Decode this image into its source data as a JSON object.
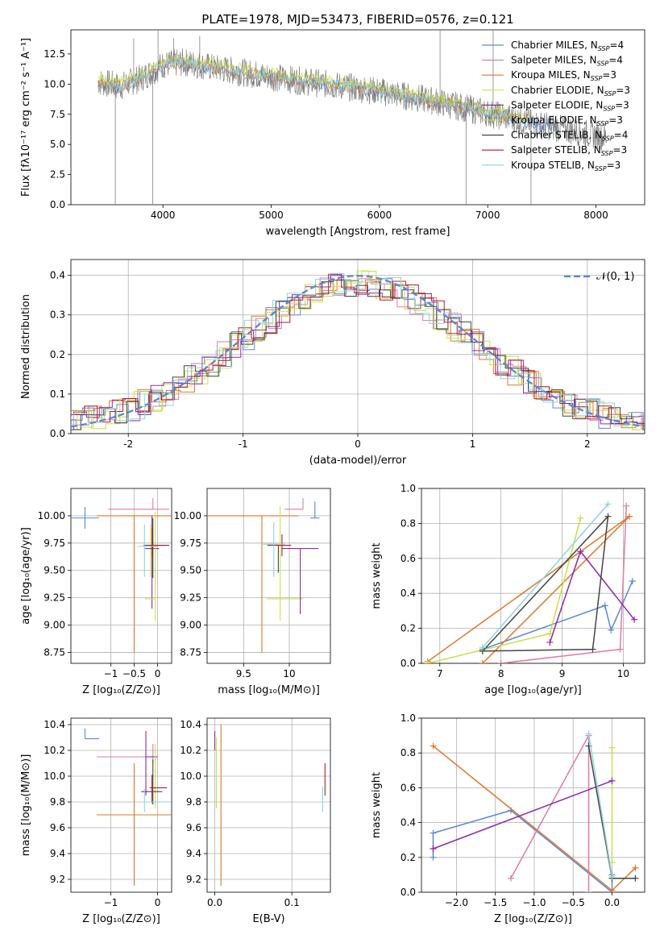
{
  "figure_title": "PLATE=1978, MJD=53473, FIBERID=0576, z=0.121",
  "colors": {
    "chabrier_miles": "#5b86d8",
    "salpeter_miles": "#e07aa8",
    "kroupa_miles": "#e0772a",
    "chabrier_elodie": "#c8e04a",
    "salpeter_elodie": "#8e2aa8",
    "kroupa_elodie": "#c8e04a",
    "chabrier_stelib": "#444444",
    "salpeter_stelib": "#b01c2a",
    "kroupa_stelib": "#8fd3e0",
    "data": "#808080",
    "gaussian": "#5b86d8"
  },
  "chart_data": [
    {
      "id": "spectrum",
      "type": "line",
      "xlabel": "wavelength [Angstrom, rest frame]",
      "ylabel": "Flux [fλ10⁻¹⁷ erg cm⁻² s⁻¹ A⁻¹]",
      "xlim": [
        3150,
        8450
      ],
      "ylim": [
        0,
        14.5
      ],
      "xticks": [
        4000,
        5000,
        6000,
        7000,
        8000
      ],
      "yticks": [
        0.0,
        2.5,
        5.0,
        7.5,
        10.0,
        12.5
      ],
      "grid": false,
      "legend_position": "top-right",
      "legend": [
        {
          "label": "Chabrier MILES, N",
          "sub": "SSP",
          "tail": "=4",
          "color_key": "chabrier_miles"
        },
        {
          "label": "Salpeter MILES, N",
          "sub": "SSP",
          "tail": "=4",
          "color_key": "salpeter_miles"
        },
        {
          "label": "Kroupa MILES, N",
          "sub": "SSP",
          "tail": "=3",
          "color_key": "kroupa_miles"
        },
        {
          "label": "Chabrier ELODIE, N",
          "sub": "SSP",
          "tail": "=3",
          "color_key": "chabrier_elodie"
        },
        {
          "label": "Salpeter ELODIE, N",
          "sub": "SSP",
          "tail": "=3",
          "color_key": "salpeter_elodie"
        },
        {
          "label": "Kroupa ELODIE, N",
          "sub": "SSP",
          "tail": "=3",
          "color_key": "kroupa_elodie"
        },
        {
          "label": "Chabrier STELIB, N",
          "sub": "SSP",
          "tail": "=4",
          "color_key": "chabrier_stelib"
        },
        {
          "label": "Salpeter STELIB, N",
          "sub": "SSP",
          "tail": "=3",
          "color_key": "salpeter_stelib"
        },
        {
          "label": "Kroupa STELIB, N",
          "sub": "SSP",
          "tail": "=3",
          "color_key": "kroupa_stelib"
        }
      ],
      "continuum": {
        "x": [
          3400,
          3600,
          3800,
          4000,
          4200,
          4500,
          5000,
          5500,
          6000,
          6500,
          7000,
          7500,
          8100
        ],
        "y": [
          10.2,
          9.8,
          10.5,
          11.6,
          11.8,
          11.3,
          10.6,
          10.0,
          9.4,
          8.6,
          7.6,
          6.6,
          5.6
        ]
      },
      "spikes": [
        {
          "x": 3560,
          "y": 0.0
        },
        {
          "x": 3730,
          "y": 13.8
        },
        {
          "x": 3905,
          "y": 0.0
        },
        {
          "x": 3955,
          "y": 14.5
        },
        {
          "x": 4100,
          "y": 13.8
        },
        {
          "x": 4340,
          "y": 14.0
        },
        {
          "x": 6560,
          "y": 14.5
        },
        {
          "x": 6800,
          "y": 0.0
        },
        {
          "x": 7050,
          "y": 14.5
        },
        {
          "x": 7400,
          "y": 0.0
        }
      ]
    },
    {
      "id": "residuals",
      "type": "line",
      "xlabel": "(data-model)/error",
      "ylabel": "Normed distribution",
      "xlim": [
        -2.5,
        2.5
      ],
      "ylim": [
        0,
        0.44
      ],
      "xticks": [
        -2,
        -1,
        0,
        1,
        2
      ],
      "yticks": [
        0.0,
        0.1,
        0.2,
        0.3,
        0.4
      ],
      "grid": true,
      "legend_position": "top-right",
      "legend": [
        {
          "label": "𝒩(0, 1)",
          "color_key": "gaussian"
        }
      ],
      "gaussian": {
        "mean": 0,
        "sigma": 1
      },
      "histogram_series_count": 9
    },
    {
      "id": "age_vs_Z",
      "type": "scatter",
      "xlabel": "Z [log₁₀(Z/Z⊙)]",
      "ylabel": "age  [log₁₀(age/yr)]",
      "xlim": [
        -1.85,
        0.3
      ],
      "ylim": [
        8.65,
        10.25
      ],
      "xticks": [
        -1,
        -0.5,
        0
      ],
      "xticklabels": [
        "−1",
        "−0.5",
        "0"
      ],
      "yticks": [
        8.75,
        9.0,
        9.25,
        9.5,
        9.75,
        10.0
      ],
      "ytick_labels": [
        "8.75",
        "9.00",
        "9.25",
        "9.50",
        "9.75",
        "10.00"
      ],
      "grid": true,
      "points": [
        {
          "x": -1.55,
          "y": 9.98,
          "xerr": [
            0.3,
            0.3
          ],
          "yerr": [
            0.1,
            0.1
          ],
          "color_key": "chabrier_miles"
        },
        {
          "x": -0.1,
          "y": 10.06,
          "xerr": [
            0.95,
            0.35
          ],
          "yerr": [
            0.0,
            0.1
          ],
          "color_key": "salpeter_miles"
        },
        {
          "x": -0.5,
          "y": 10.0,
          "xerr": [
            0.8,
            0.8
          ],
          "yerr": [
            1.25,
            0.0
          ],
          "color_key": "kroupa_miles"
        },
        {
          "x": -0.15,
          "y": 9.72,
          "xerr": [
            0.0,
            0.15
          ],
          "yerr": [
            0.28,
            0.2
          ],
          "color_key": "chabrier_elodie"
        },
        {
          "x": -0.12,
          "y": 9.7,
          "xerr": [
            0.15,
            0.15
          ],
          "yerr": [
            0.55,
            0.3
          ],
          "color_key": "salpeter_elodie"
        },
        {
          "x": -0.05,
          "y": 9.24,
          "xerr": [
            0.22,
            0.0
          ],
          "yerr": [
            0.2,
            0.8
          ],
          "color_key": "kroupa_elodie"
        },
        {
          "x": -0.1,
          "y": 9.73,
          "xerr": [
            0.2,
            0.35
          ],
          "yerr": [
            0.3,
            0.25
          ],
          "color_key": "chabrier_stelib"
        },
        {
          "x": -0.12,
          "y": 9.73,
          "xerr": [
            0.05,
            0.3
          ],
          "yerr": [
            0.1,
            0.15
          ],
          "color_key": "salpeter_stelib"
        },
        {
          "x": -0.28,
          "y": 9.72,
          "xerr": [
            0.15,
            0.25
          ],
          "yerr": [
            0.28,
            0.2
          ],
          "color_key": "kroupa_stelib"
        }
      ]
    },
    {
      "id": "age_vs_mass",
      "type": "scatter",
      "xlabel": "mass [log₁₀(M/M⊙)]",
      "ylabel": "",
      "xlim": [
        9.1,
        10.45
      ],
      "ylim": [
        8.65,
        10.25
      ],
      "xticks": [
        9.5,
        10.0
      ],
      "yticks": [
        8.75,
        9.0,
        9.25,
        9.5,
        9.75,
        10.0
      ],
      "ytick_labels": [
        "8.75",
        "9.00",
        "9.25",
        "9.50",
        "9.75",
        "10.00"
      ],
      "grid": true,
      "points": [
        {
          "x": 10.28,
          "y": 9.98,
          "xerr": [
            0.05,
            0.05
          ],
          "yerr": [
            0.0,
            0.15
          ],
          "color_key": "chabrier_miles"
        },
        {
          "x": 10.15,
          "y": 10.06,
          "xerr": [
            0.2,
            0.0
          ],
          "yerr": [
            0.0,
            0.1
          ],
          "color_key": "salpeter_miles"
        },
        {
          "x": 9.7,
          "y": 10.0,
          "xerr": [
            0.6,
            0.4
          ],
          "yerr": [
            1.25,
            0.0
          ],
          "color_key": "kroupa_miles"
        },
        {
          "x": 9.9,
          "y": 9.24,
          "xerr": [
            0.15,
            0.25
          ],
          "yerr": [
            0.2,
            0.85
          ],
          "color_key": "kroupa_elodie"
        },
        {
          "x": 10.12,
          "y": 9.7,
          "xerr": [
            0.2,
            0.2
          ],
          "yerr": [
            0.6,
            0.0
          ],
          "color_key": "salpeter_elodie"
        },
        {
          "x": 9.88,
          "y": 9.73,
          "xerr": [
            0.12,
            0.0
          ],
          "yerr": [
            0.25,
            0.0
          ],
          "color_key": "chabrier_stelib"
        },
        {
          "x": 9.92,
          "y": 9.73,
          "xerr": [
            0.1,
            0.1
          ],
          "yerr": [
            0.1,
            0.1
          ],
          "color_key": "salpeter_stelib"
        },
        {
          "x": 9.83,
          "y": 9.74,
          "xerr": [
            0.12,
            0.12
          ],
          "yerr": [
            0.3,
            0.2
          ],
          "color_key": "kroupa_stelib"
        }
      ]
    },
    {
      "id": "massweight_vs_age",
      "type": "line",
      "xlabel": "age  [log₁₀(age/yr)]",
      "ylabel": "mass weight",
      "xlim": [
        6.7,
        10.35
      ],
      "ylim": [
        0,
        1.0
      ],
      "xticks": [
        7,
        8,
        9,
        10
      ],
      "yticks": [
        0.0,
        0.2,
        0.4,
        0.6,
        0.8,
        1.0
      ],
      "grid": true,
      "series": [
        {
          "color_key": "chabrier_miles",
          "x": [
            7.7,
            9.7,
            9.8,
            10.15
          ],
          "y": [
            0.08,
            0.33,
            0.19,
            0.47
          ]
        },
        {
          "color_key": "salpeter_miles",
          "x": [
            8.0,
            9.95,
            10.05
          ],
          "y": [
            0.0,
            0.08,
            0.9
          ]
        },
        {
          "color_key": "kroupa_miles",
          "x": [
            6.8,
            10.1,
            7.7
          ],
          "y": [
            0.01,
            0.84,
            0.0
          ]
        },
        {
          "color_key": "chabrier_elodie",
          "x": [
            6.8,
            8.8,
            9.3
          ],
          "y": [
            0.0,
            0.17,
            0.83
          ]
        },
        {
          "color_key": "salpeter_elodie",
          "x": [
            8.8,
            9.3,
            10.18
          ],
          "y": [
            0.12,
            0.64,
            0.25
          ]
        },
        {
          "color_key": "chabrier_stelib",
          "x": [
            7.7,
            9.5,
            9.75,
            7.7
          ],
          "y": [
            0.07,
            0.08,
            0.84,
            0.07
          ]
        },
        {
          "color_key": "kroupa_stelib",
          "x": [
            7.7,
            9.75
          ],
          "y": [
            0.09,
            0.91
          ]
        }
      ]
    },
    {
      "id": "mass_vs_Z",
      "type": "scatter",
      "xlabel": "Z [log₁₀(Z/Z⊙)]",
      "ylabel": "mass [log₁₀(M/M⊙)]",
      "xlim": [
        -1.85,
        0.3
      ],
      "ylim": [
        9.1,
        10.45
      ],
      "xticks": [
        -1,
        0
      ],
      "xticklabels": [
        "−1",
        "0"
      ],
      "yticks": [
        9.2,
        9.4,
        9.6,
        9.8,
        10.0,
        10.2,
        10.4
      ],
      "grid": true,
      "points": [
        {
          "x": -1.55,
          "y": 10.29,
          "xerr": [
            0.0,
            0.3
          ],
          "yerr": [
            0.0,
            0.08
          ],
          "color_key": "chabrier_miles"
        },
        {
          "x": -0.1,
          "y": 10.15,
          "xerr": [
            1.2,
            0.0
          ],
          "yerr": [
            0.05,
            0.1
          ],
          "color_key": "salpeter_miles"
        },
        {
          "x": -0.5,
          "y": 9.7,
          "xerr": [
            0.8,
            0.8
          ],
          "yerr": [
            0.55,
            0.4
          ],
          "color_key": "kroupa_miles"
        },
        {
          "x": -0.25,
          "y": 10.15,
          "xerr": [
            0.0,
            0.25
          ],
          "yerr": [
            0.3,
            0.2
          ],
          "color_key": "salpeter_elodie"
        },
        {
          "x": -0.05,
          "y": 9.85,
          "xerr": [
            0.0,
            0.0
          ],
          "yerr": [
            0.1,
            0.4
          ],
          "color_key": "kroupa_elodie"
        },
        {
          "x": -0.1,
          "y": 9.88,
          "xerr": [
            0.25,
            0.2
          ],
          "yerr": [
            0.1,
            0.25
          ],
          "color_key": "chabrier_stelib"
        },
        {
          "x": -0.12,
          "y": 9.91,
          "xerr": [
            0.05,
            0.32
          ],
          "yerr": [
            0.12,
            0.1
          ],
          "color_key": "salpeter_stelib"
        },
        {
          "x": -0.28,
          "y": 9.8,
          "xerr": [
            0.0,
            0.55
          ],
          "yerr": [
            0.08,
            0.1
          ],
          "color_key": "kroupa_stelib"
        }
      ]
    },
    {
      "id": "mass_vs_ebv",
      "type": "scatter",
      "xlabel": "E(B-V)",
      "ylabel": "",
      "xlim": [
        -0.01,
        0.15
      ],
      "ylim": [
        9.1,
        10.45
      ],
      "xticks": [
        0.0,
        0.1
      ],
      "xticklabels": [
        "0.0",
        "0.1"
      ],
      "yticks": [
        9.2,
        9.4,
        9.6,
        9.8,
        10.0,
        10.2,
        10.4
      ],
      "grid": true,
      "points": [
        {
          "x": 0.0,
          "y": 10.3,
          "xerr": [
            0,
            0
          ],
          "yerr": [
            0.1,
            0.05
          ],
          "color_key": "salpeter_elodie"
        },
        {
          "x": 0.002,
          "y": 10.05,
          "xerr": [
            0,
            0
          ],
          "yerr": [
            0.3,
            0.25
          ],
          "color_key": "chabrier_elodie"
        },
        {
          "x": 0.008,
          "y": 9.8,
          "xerr": [
            0,
            0
          ],
          "yerr": [
            0.65,
            0.6
          ],
          "color_key": "kroupa_miles"
        },
        {
          "x": 0.14,
          "y": 9.82,
          "xerr": [
            0,
            0
          ],
          "yerr": [
            0.1,
            0.1
          ],
          "color_key": "kroupa_stelib"
        },
        {
          "x": 0.143,
          "y": 9.95,
          "xerr": [
            0,
            0
          ],
          "yerr": [
            0.1,
            0.15
          ],
          "color_key": "salpeter_stelib"
        }
      ]
    },
    {
      "id": "massweight_vs_Z",
      "type": "line",
      "xlabel": "Z [log₁₀(Z/Z⊙)]",
      "ylabel": "mass weight",
      "xlim": [
        -2.45,
        0.42
      ],
      "ylim": [
        0,
        1.0
      ],
      "xticks": [
        -2.0,
        -1.5,
        -1.0,
        -0.5,
        0.0
      ],
      "xticklabels": [
        "−2.0",
        "−1.5",
        "−1.0",
        "−0.5",
        "0.0"
      ],
      "yticks": [
        0.0,
        0.2,
        0.4,
        0.6,
        0.8,
        1.0
      ],
      "grid": true,
      "series": [
        {
          "color_key": "chabrier_miles",
          "x": [
            -2.3,
            -2.3,
            -1.3,
            0.0,
            0.0
          ],
          "y": [
            0.2,
            0.34,
            0.47,
            0.0,
            0.1
          ]
        },
        {
          "color_key": "salpeter_miles",
          "x": [
            -1.3,
            -0.3,
            -0.3
          ],
          "y": [
            0.08,
            0.9,
            0.0
          ]
        },
        {
          "color_key": "kroupa_miles",
          "x": [
            -2.3,
            0.0,
            0.3
          ],
          "y": [
            0.84,
            0.01,
            0.14
          ]
        },
        {
          "color_key": "chabrier_elodie",
          "x": [
            0.0,
            0.0
          ],
          "y": [
            0.83,
            0.17
          ]
        },
        {
          "color_key": "salpeter_elodie",
          "x": [
            -2.3,
            0.0
          ],
          "y": [
            0.25,
            0.64
          ]
        },
        {
          "color_key": "chabrier_stelib",
          "x": [
            -0.3,
            0.0,
            0.3
          ],
          "y": [
            0.84,
            0.08,
            0.08
          ]
        },
        {
          "color_key": "kroupa_stelib",
          "x": [
            -0.3,
            0.0
          ],
          "y": [
            0.91,
            0.09
          ]
        }
      ]
    }
  ]
}
